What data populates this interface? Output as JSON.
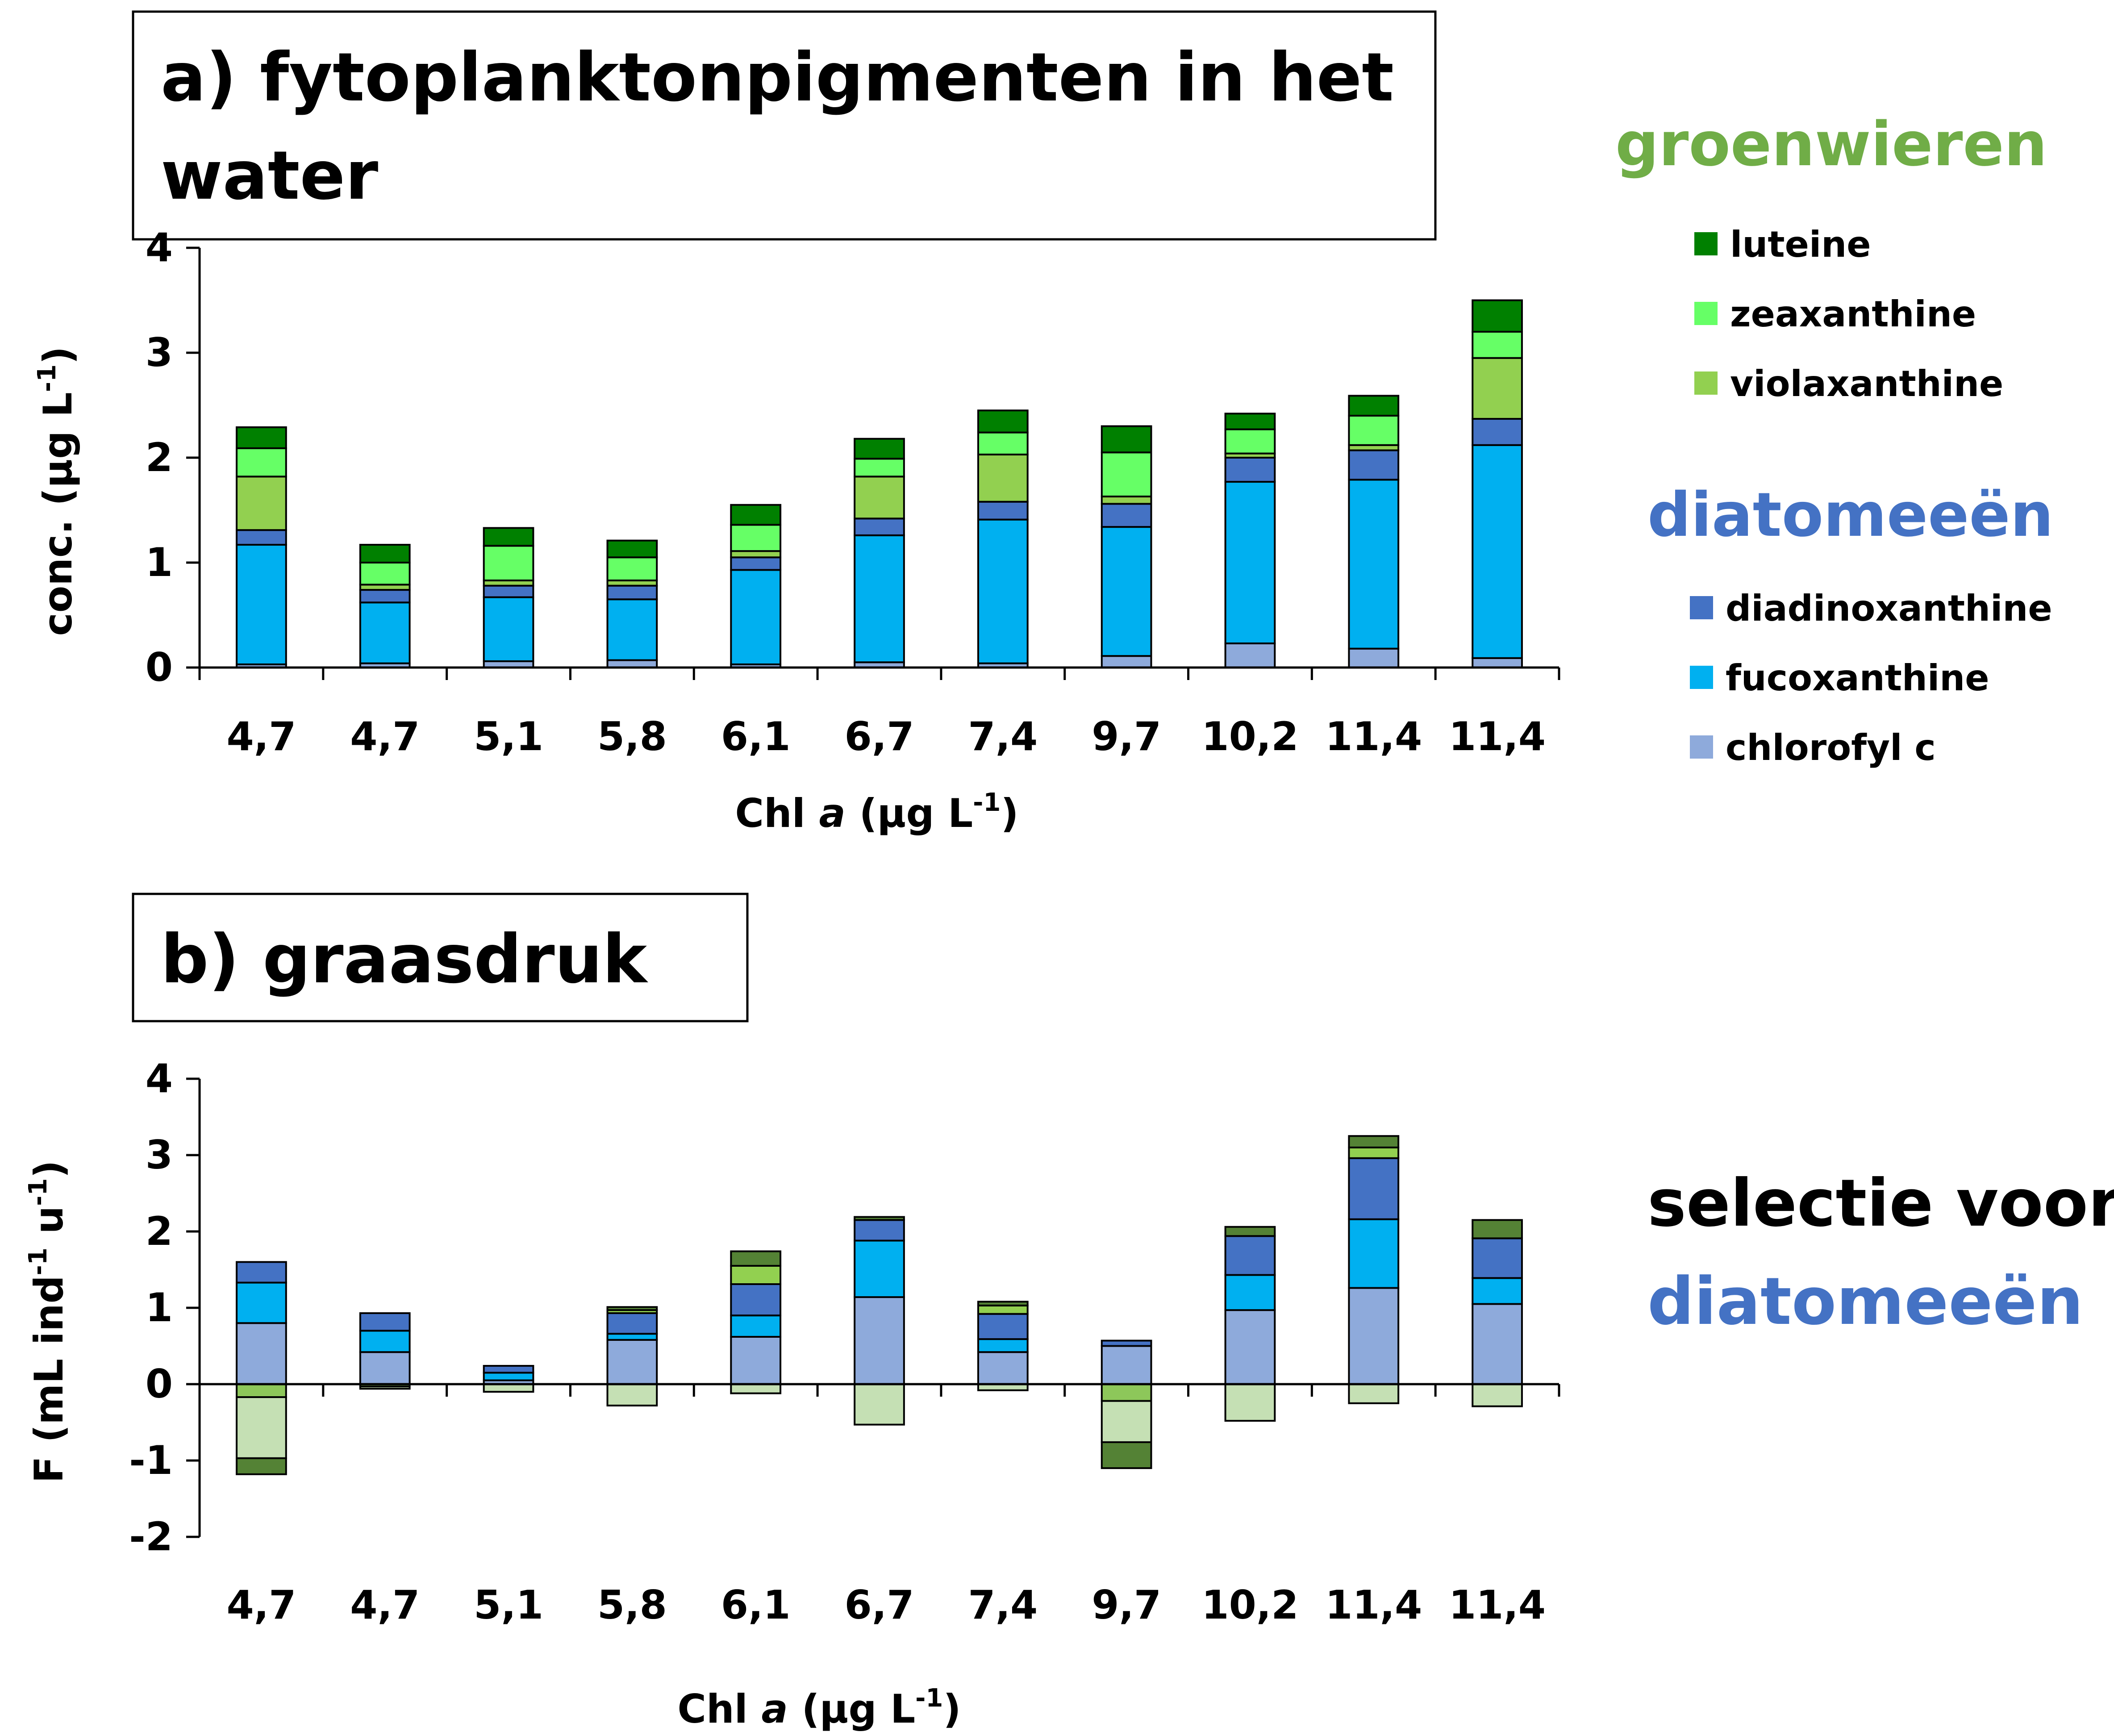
{
  "colors": {
    "chlorofyl_c": "#8eaadb",
    "fucoxanthine": "#00b0f0",
    "diadinoxanthine": "#4472c4",
    "violaxanthine": "#92d050",
    "zeaxanthine": "#66ff66",
    "luteine": "#008000",
    "neg_light": "#c5e0b4",
    "neg_mid": "#8dc75a",
    "neg_dark": "#548235",
    "green_heading": "#70ad47",
    "blue_heading": "#4472c4"
  },
  "legend": {
    "green_heading": "groenwieren",
    "green_items": [
      {
        "label": "luteine",
        "color": "#008000"
      },
      {
        "label": "zeaxanthine",
        "color": "#66ff66"
      },
      {
        "label": "violaxanthine",
        "color": "#92d050"
      }
    ],
    "blue_heading": "diatomeeën",
    "blue_items": [
      {
        "label": "diadinoxanthine",
        "color": "#4472c4"
      },
      {
        "label": "fucoxanthine",
        "color": "#00b0f0"
      },
      {
        "label": "chlorofyl c",
        "color": "#8eaadb"
      }
    ]
  },
  "annotation": {
    "line1": "selectie voor",
    "line2": "diatomeeën"
  },
  "chart_data": [
    {
      "type": "bar",
      "stacked": true,
      "title_line1": "a) fytoplanktonpigmenten in het",
      "title_line2": "water",
      "ylabel_main": "conc. (µg L",
      "ylabel_sup": "-1",
      "ylabel_end": ")",
      "xlabel_pre": "Chl ",
      "xlabel_italic": "a",
      "xlabel_mid": " (µg L",
      "xlabel_sup": "-1",
      "xlabel_end": ")",
      "ylim": [
        0,
        4
      ],
      "yticks": [
        "0",
        "1",
        "2",
        "3",
        "4"
      ],
      "categories": [
        "4,7",
        "4,7",
        "5,1",
        "5,8",
        "6,1",
        "6,7",
        "7,4",
        "9,7",
        "10,2",
        "11,4",
        "11,4"
      ],
      "series": [
        {
          "name": "chlorofyl c",
          "color": "#8eaadb",
          "values": [
            0.03,
            0.04,
            0.06,
            0.07,
            0.03,
            0.05,
            0.04,
            0.11,
            0.23,
            0.18,
            0.09
          ]
        },
        {
          "name": "fucoxanthine",
          "color": "#00b0f0",
          "values": [
            1.14,
            0.58,
            0.61,
            0.58,
            0.9,
            1.21,
            1.37,
            1.23,
            1.54,
            1.61,
            2.03
          ]
        },
        {
          "name": "diadinoxanthine",
          "color": "#4472c4",
          "values": [
            0.14,
            0.12,
            0.11,
            0.13,
            0.12,
            0.16,
            0.17,
            0.22,
            0.23,
            0.28,
            0.25
          ]
        },
        {
          "name": "violaxanthine",
          "color": "#92d050",
          "values": [
            0.51,
            0.05,
            0.05,
            0.05,
            0.06,
            0.4,
            0.45,
            0.07,
            0.04,
            0.05,
            0.58
          ]
        },
        {
          "name": "zeaxanthine",
          "color": "#66ff66",
          "values": [
            0.27,
            0.21,
            0.33,
            0.22,
            0.25,
            0.17,
            0.21,
            0.42,
            0.23,
            0.28,
            0.25
          ]
        },
        {
          "name": "luteine",
          "color": "#008000",
          "values": [
            0.2,
            0.17,
            0.17,
            0.16,
            0.19,
            0.19,
            0.21,
            0.25,
            0.15,
            0.19,
            0.3
          ]
        }
      ]
    },
    {
      "type": "bar",
      "stacked": true,
      "title": "b) graasdruk",
      "ylabel_main": "F (mL ind",
      "ylabel_sup1": "-1",
      "ylabel_mid": " u",
      "ylabel_sup2": "-1",
      "ylabel_end": ")",
      "xlabel_pre": "Chl ",
      "xlabel_italic": "a",
      "xlabel_mid": " (µg L",
      "xlabel_sup": "-1",
      "xlabel_end": ")",
      "ylim": [
        -2,
        4
      ],
      "yticks": [
        "-2",
        "-1",
        "0",
        "1",
        "2",
        "3",
        "4"
      ],
      "categories": [
        "4,7",
        "4,7",
        "5,1",
        "5,8",
        "6,1",
        "6,7",
        "7,4",
        "9,7",
        "10,2",
        "11,4",
        "11,4"
      ],
      "positive_series": [
        {
          "name": "chlorofyl c",
          "color": "#8eaadb",
          "values": [
            0.8,
            0.42,
            0.05,
            0.58,
            0.62,
            1.14,
            0.42,
            0.5,
            0.97,
            1.26,
            1.05
          ]
        },
        {
          "name": "fucoxanthine",
          "color": "#00b0f0",
          "values": [
            0.53,
            0.28,
            0.1,
            0.08,
            0.28,
            0.74,
            0.17,
            0.0,
            0.46,
            0.9,
            0.34
          ]
        },
        {
          "name": "diadinoxanthine",
          "color": "#4472c4",
          "values": [
            0.27,
            0.23,
            0.09,
            0.27,
            0.41,
            0.27,
            0.33,
            0.07,
            0.51,
            0.8,
            0.52
          ]
        },
        {
          "name": "violaxanthine",
          "color": "#92d050",
          "values": [
            0,
            0,
            0,
            0.04,
            0.24,
            0,
            0.11,
            0,
            0,
            0.14,
            0
          ]
        },
        {
          "name": "zeaxanthine",
          "color": "#66ff66",
          "values": [
            0,
            0,
            0,
            0,
            0,
            0,
            0,
            0,
            0,
            0,
            0
          ]
        },
        {
          "name": "luteine",
          "color": "#548235",
          "values": [
            0,
            0,
            0,
            0.04,
            0.19,
            0.04,
            0.05,
            0,
            0.12,
            0.15,
            0.24
          ]
        }
      ],
      "negative_series": [
        {
          "name": "violaxanthine",
          "color": "#8dc75a",
          "values": [
            -0.17,
            -0.03,
            0,
            0,
            0,
            0,
            0,
            -0.22,
            0,
            0,
            0
          ]
        },
        {
          "name": "zeaxanthine",
          "color": "#c5e0b4",
          "values": [
            -0.8,
            -0.03,
            -0.1,
            -0.28,
            -0.12,
            -0.53,
            -0.08,
            -0.54,
            -0.48,
            -0.25,
            -0.29
          ]
        },
        {
          "name": "luteine",
          "color": "#548235",
          "values": [
            -0.21,
            0,
            0,
            0,
            0,
            0,
            0,
            -0.34,
            0,
            0,
            0
          ]
        }
      ]
    }
  ]
}
